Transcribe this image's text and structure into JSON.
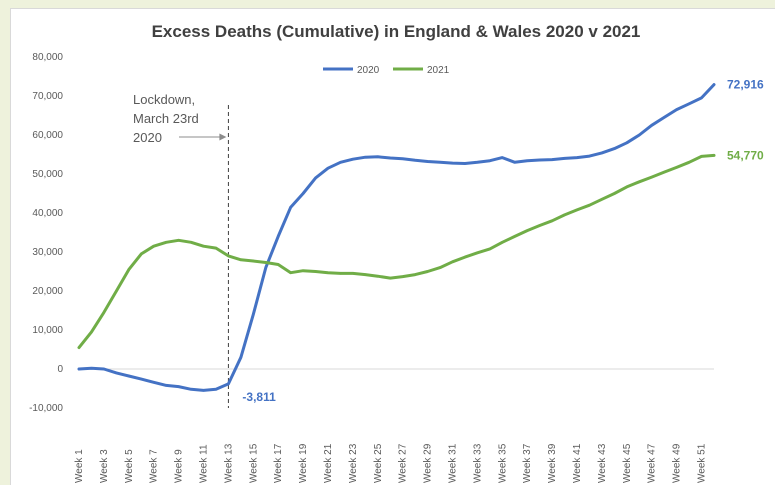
{
  "chart_data": {
    "type": "line",
    "title": "Excess Deaths (Cumulative) in England & Wales 2020 v 2021",
    "xlabel": "",
    "ylabel": "",
    "ylim": [
      -10000,
      80000
    ],
    "yticks": [
      -10000,
      0,
      10000,
      20000,
      30000,
      40000,
      50000,
      60000,
      70000,
      80000
    ],
    "ytick_labels": [
      "-10,000",
      "0",
      "10,000",
      "20,000",
      "30,000",
      "40,000",
      "50,000",
      "60,000",
      "70,000",
      "80,000"
    ],
    "categories": [
      "Week 1",
      "Week 2",
      "Week 3",
      "Week 4",
      "Week 5",
      "Week 6",
      "Week 7",
      "Week 8",
      "Week 9",
      "Week 10",
      "Week 11",
      "Week 12",
      "Week 13",
      "Week 14",
      "Week 15",
      "Week 16",
      "Week 17",
      "Week 18",
      "Week 19",
      "Week 20",
      "Week 21",
      "Week 22",
      "Week 23",
      "Week 24",
      "Week 25",
      "Week 26",
      "Week 27",
      "Week 28",
      "Week 29",
      "Week 30",
      "Week 31",
      "Week 32",
      "Week 33",
      "Week 34",
      "Week 35",
      "Week 36",
      "Week 37",
      "Week 38",
      "Week 39",
      "Week 40",
      "Week 41",
      "Week 42",
      "Week 43",
      "Week 44",
      "Week 45",
      "Week 46",
      "Week 47",
      "Week 48",
      "Week 49",
      "Week 50",
      "Week 51",
      "Week 52"
    ],
    "x_tick_labels": [
      "Week 1",
      "Week 3",
      "Week 5",
      "Week 7",
      "Week 9",
      "Week 11",
      "Week 13",
      "Week 15",
      "Week 17",
      "Week 19",
      "Week 21",
      "Week 23",
      "Week 25",
      "Week 27",
      "Week 29",
      "Week 31",
      "Week 33",
      "Week 35",
      "Week 37",
      "Week 39",
      "Week 41",
      "Week 43",
      "Week 45",
      "Week 47",
      "Week 49",
      "Week 51"
    ],
    "series": [
      {
        "name": "2020",
        "color": "#4472c4",
        "values": [
          0,
          200,
          0,
          -1000,
          -1800,
          -2600,
          -3400,
          -4200,
          -4500,
          -5200,
          -5500,
          -5200,
          -3811,
          3000,
          14000,
          26000,
          34000,
          41500,
          45000,
          49000,
          51500,
          53000,
          53800,
          54300,
          54400,
          54100,
          53900,
          53500,
          53200,
          53000,
          52800,
          52700,
          53000,
          53400,
          54200,
          53000,
          53400,
          53600,
          53700,
          54000,
          54200,
          54600,
          55400,
          56500,
          58000,
          60000,
          62500,
          64500,
          66500,
          68000,
          69500,
          72916
        ]
      },
      {
        "name": "2021",
        "color": "#70ad47",
        "values": [
          5500,
          9500,
          14500,
          20000,
          25500,
          29500,
          31500,
          32500,
          33000,
          32500,
          31500,
          31000,
          29000,
          28000,
          27700,
          27300,
          26800,
          24700,
          25200,
          25000,
          24700,
          24500,
          24500,
          24200,
          23800,
          23300,
          23700,
          24200,
          25000,
          26000,
          27500,
          28700,
          29800,
          30800,
          32500,
          34000,
          35500,
          36800,
          38000,
          39500,
          40800,
          42000,
          43500,
          45000,
          46700,
          48000,
          49200,
          50500,
          51700,
          53000,
          54500,
          54770
        ]
      }
    ],
    "end_labels": [
      "72,916",
      "54,770"
    ],
    "min_label": "-3,811",
    "min_label_index": 12,
    "legend_position": "top",
    "annotation": {
      "lines": [
        "Lockdown,",
        "March 23rd",
        "2020"
      ],
      "x_category_index": 12
    },
    "grid": false
  }
}
